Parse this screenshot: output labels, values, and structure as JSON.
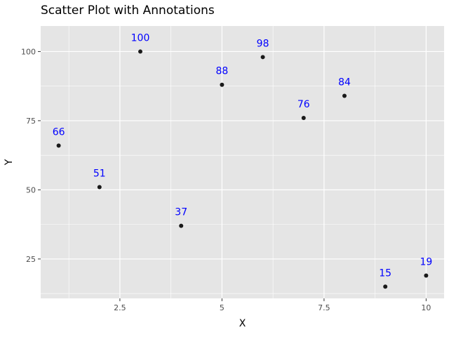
{
  "chart_data": {
    "type": "scatter",
    "title": "Scatter Plot with Annotations",
    "xlabel": "X",
    "ylabel": "Y",
    "xlim": [
      0.56,
      10.44
    ],
    "ylim": [
      10.75,
      109.25
    ],
    "x_ticks": [
      2.5,
      5,
      7.5,
      10
    ],
    "x_tick_labels": [
      "2.5",
      "5",
      "7.5",
      "10"
    ],
    "y_ticks": [
      25,
      50,
      75,
      100
    ],
    "y_tick_labels": [
      "25",
      "50",
      "75",
      "100"
    ],
    "grid": true,
    "points": [
      {
        "x": 1,
        "y": 66,
        "label": "66"
      },
      {
        "x": 2,
        "y": 51,
        "label": "51"
      },
      {
        "x": 3,
        "y": 100,
        "label": "100"
      },
      {
        "x": 4,
        "y": 37,
        "label": "37"
      },
      {
        "x": 5,
        "y": 88,
        "label": "88"
      },
      {
        "x": 6,
        "y": 98,
        "label": "98"
      },
      {
        "x": 7,
        "y": 76,
        "label": "76"
      },
      {
        "x": 8,
        "y": 84,
        "label": "84"
      },
      {
        "x": 9,
        "y": 15,
        "label": "15"
      },
      {
        "x": 10,
        "y": 19,
        "label": "19"
      }
    ],
    "colors": {
      "panel_background": "#e5e5e5",
      "grid": "#ffffff",
      "point": "#1a1a1a",
      "annotation": "#0000ff"
    }
  }
}
